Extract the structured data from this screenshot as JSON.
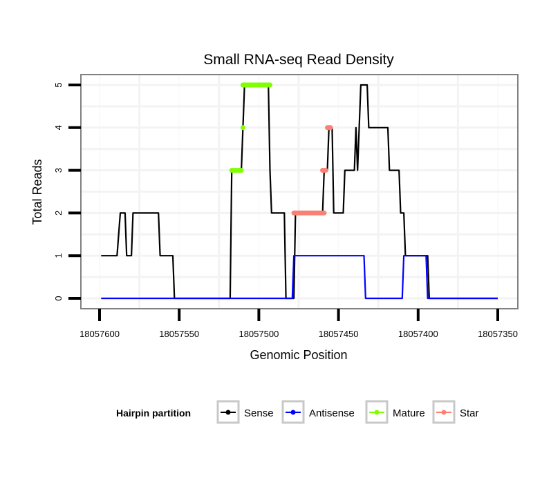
{
  "chart_data": {
    "type": "line",
    "title": "Small RNA-seq Read Density",
    "xlabel": "Genomic Position",
    "ylabel": "Total Reads",
    "xlim": [
      18057610,
      18057340
    ],
    "x_reversed": true,
    "ylim": [
      -0.25,
      5.25
    ],
    "xticks": [
      18057600,
      18057550,
      18057500,
      18057450,
      18057400,
      18057350
    ],
    "xtick_labels": [
      "18057600",
      "18057550",
      "18057500",
      "18057450",
      "18057400",
      "18057350"
    ],
    "yticks": [
      0,
      1,
      2,
      3,
      4,
      5
    ],
    "ytick_labels": [
      "0",
      "1",
      "2",
      "3",
      "4",
      "5"
    ],
    "grid": true,
    "legend": {
      "title": "Hairpin partition",
      "placement": "bottom",
      "entries": [
        "Sense",
        "Antisense",
        "Mature",
        "Star"
      ]
    },
    "series": [
      {
        "name": "Sense",
        "color": "#000000",
        "style": "line",
        "points": [
          [
            18057599,
            1
          ],
          [
            18057589,
            1
          ],
          [
            18057587,
            2
          ],
          [
            18057584,
            2
          ],
          [
            18057583,
            1
          ],
          [
            18057580,
            1
          ],
          [
            18057579,
            2
          ],
          [
            18057563,
            2
          ],
          [
            18057562,
            1
          ],
          [
            18057554,
            1
          ],
          [
            18057553,
            0
          ],
          [
            18057518,
            0
          ],
          [
            18057517,
            3
          ],
          [
            18057511,
            3
          ],
          [
            18057510,
            4
          ],
          [
            18057509,
            5
          ],
          [
            18057494,
            5
          ],
          [
            18057493,
            3
          ],
          [
            18057492,
            2
          ],
          [
            18057484,
            2
          ],
          [
            18057483,
            0
          ],
          [
            18057478,
            0
          ],
          [
            18057477,
            2
          ],
          [
            18057460,
            2
          ],
          [
            18057459,
            3
          ],
          [
            18057457,
            3
          ],
          [
            18057456,
            4
          ],
          [
            18057454,
            4
          ],
          [
            18057453,
            2
          ],
          [
            18057447,
            2
          ],
          [
            18057446,
            3
          ],
          [
            18057440,
            3
          ],
          [
            18057439,
            4
          ],
          [
            18057438,
            3
          ],
          [
            18057436,
            5
          ],
          [
            18057432,
            5
          ],
          [
            18057431,
            4
          ],
          [
            18057419,
            4
          ],
          [
            18057418,
            3
          ],
          [
            18057412,
            3
          ],
          [
            18057411,
            2
          ],
          [
            18057409,
            2
          ],
          [
            18057408,
            1
          ],
          [
            18057394,
            1
          ],
          [
            18057393,
            0
          ],
          [
            18057350,
            0
          ]
        ]
      },
      {
        "name": "Antisense",
        "color": "#0000ff",
        "style": "line",
        "points": [
          [
            18057599,
            0
          ],
          [
            18057479,
            0
          ],
          [
            18057478,
            1
          ],
          [
            18057434,
            1
          ],
          [
            18057433,
            0
          ],
          [
            18057410,
            0
          ],
          [
            18057409,
            1
          ],
          [
            18057395,
            1
          ],
          [
            18057394,
            0
          ],
          [
            18057350,
            0
          ]
        ]
      },
      {
        "name": "Mature",
        "color": "#7fff00",
        "style": "points",
        "segments": [
          [
            18057517,
            18057511,
            3
          ],
          [
            18057510,
            18057510,
            4
          ],
          [
            18057510,
            18057493,
            5
          ]
        ]
      },
      {
        "name": "Star",
        "color": "#fa8072",
        "style": "points",
        "segments": [
          [
            18057478,
            18057459,
            2
          ],
          [
            18057460,
            18057458,
            3
          ],
          [
            18057457,
            18057455,
            4
          ]
        ]
      }
    ]
  }
}
